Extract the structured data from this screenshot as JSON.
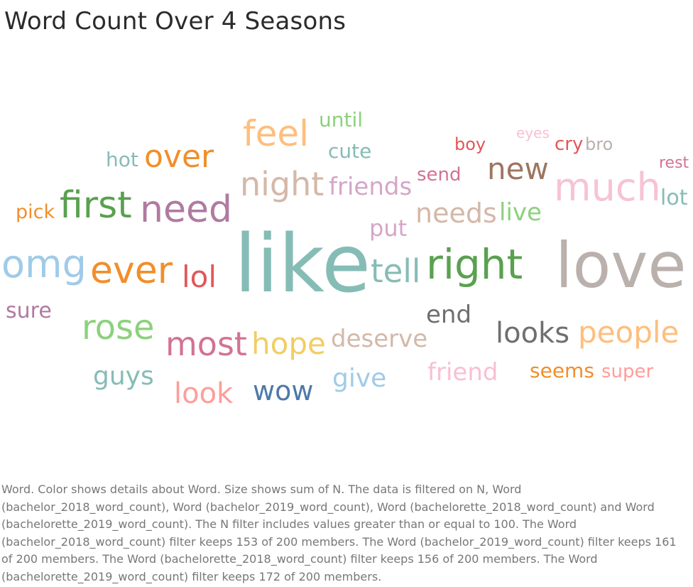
{
  "title": "Word Count Over 4 Seasons",
  "caption": "Word.  Color shows details about Word.  Size shows sum of N. The data is filtered on N, Word (bachelor_2018_word_count), Word (bachelor_2019_word_count), Word (bachelorette_2018_word_count) and Word (bachelorette_2019_word_count). The N filter includes values greater than or equal to 100. The Word (bachelor_2018_word_count) filter keeps 153 of 200 members. The Word (bachelor_2019_word_count) filter keeps 161 of 200 members. The Word (bachelorette_2018_word_count) filter keeps 156 of 200 members. The Word (bachelorette_2019_word_count) filter keeps 172 of 200 members.",
  "chart_data": {
    "type": "wordcloud",
    "words": [
      {
        "word": "like",
        "color": "#86bcb6"
      },
      {
        "word": "love",
        "color": "#bab0ac"
      },
      {
        "word": "right",
        "color": "#59a14f"
      },
      {
        "word": "much",
        "color": "#f7c3d4"
      },
      {
        "word": "omg",
        "color": "#a0cbe8"
      },
      {
        "word": "ever",
        "color": "#f28e2b"
      },
      {
        "word": "need",
        "color": "#b07aa1"
      },
      {
        "word": "first",
        "color": "#59a14f"
      },
      {
        "word": "night",
        "color": "#d4b8a8"
      },
      {
        "word": "tell",
        "color": "#86bcb6"
      },
      {
        "word": "most",
        "color": "#d37295"
      },
      {
        "word": "feel",
        "color": "#ffbe7d"
      },
      {
        "word": "rose",
        "color": "#8cd17d"
      },
      {
        "word": "people",
        "color": "#ffbe7d"
      },
      {
        "word": "new",
        "color": "#9d7660"
      },
      {
        "word": "lol",
        "color": "#e15759"
      },
      {
        "word": "over",
        "color": "#f28e2b"
      },
      {
        "word": "hope",
        "color": "#f1ce63"
      },
      {
        "word": "looks",
        "color": "#6f6f6f"
      },
      {
        "word": "look",
        "color": "#ff9d9a"
      },
      {
        "word": "wow",
        "color": "#4e79a7"
      },
      {
        "word": "needs",
        "color": "#d4b8a8"
      },
      {
        "word": "friends",
        "color": "#d4a6c8"
      },
      {
        "word": "deserve",
        "color": "#d4b8a8"
      },
      {
        "word": "guys",
        "color": "#86bcb6"
      },
      {
        "word": "friend",
        "color": "#fabfd2"
      },
      {
        "word": "give",
        "color": "#a0cbe8"
      },
      {
        "word": "end",
        "color": "#6f6f6f"
      },
      {
        "word": "live",
        "color": "#8cd17d"
      },
      {
        "word": "put",
        "color": "#d4a6c8"
      },
      {
        "word": "cute",
        "color": "#86bcb6"
      },
      {
        "word": "seems",
        "color": "#f28e2b"
      },
      {
        "word": "super",
        "color": "#ff9d9a"
      },
      {
        "word": "lot",
        "color": "#86bcb6"
      },
      {
        "word": "sure",
        "color": "#b07aa1"
      },
      {
        "word": "until",
        "color": "#8cd17d"
      },
      {
        "word": "hot",
        "color": "#86bcb6"
      },
      {
        "word": "send",
        "color": "#d37295"
      },
      {
        "word": "pick",
        "color": "#f28e2b"
      },
      {
        "word": "boy",
        "color": "#e15759"
      },
      {
        "word": "cry",
        "color": "#e15759"
      },
      {
        "word": "bro",
        "color": "#bab0ac"
      },
      {
        "word": "rest",
        "color": "#d37295"
      },
      {
        "word": "eyes",
        "color": "#fabfd2"
      }
    ]
  }
}
